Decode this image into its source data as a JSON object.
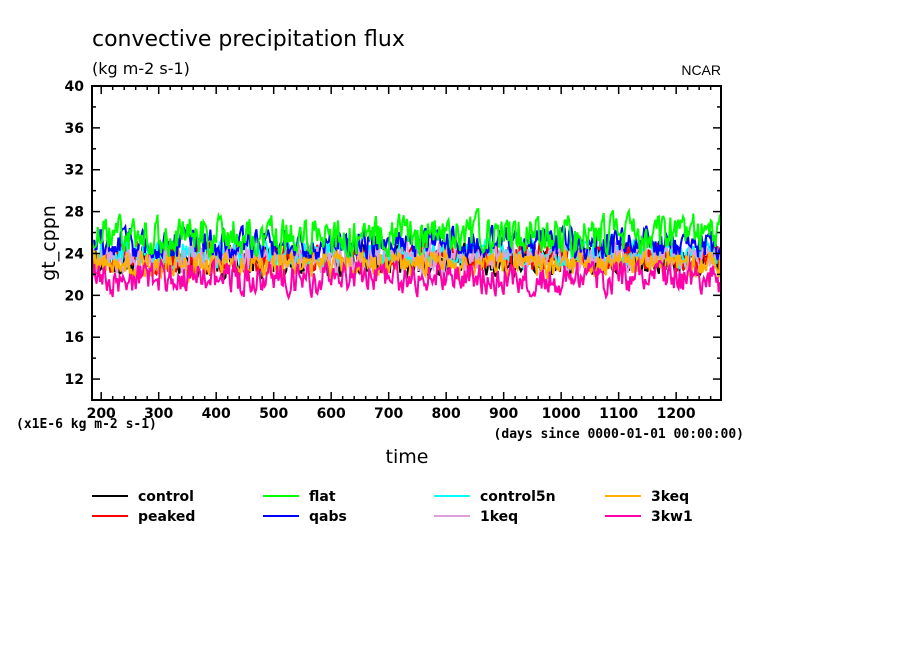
{
  "chart_data": {
    "type": "line",
    "title": "convective precipitation flux",
    "subtitle": "(kg m-2 s-1)",
    "credit": "NCAR",
    "xlabel": "time",
    "x_units": "(days since 0000-01-01 00:00:00)",
    "ylabel": "gt_cppn",
    "y_scale_note": "(x1E-6 kg m-2 s-1)",
    "xlim": [
      184,
      1278
    ],
    "ylim": [
      10,
      40
    ],
    "x_ticks": [
      200,
      300,
      400,
      500,
      600,
      700,
      800,
      900,
      1000,
      1100,
      1200
    ],
    "x_tick_labels": [
      "200",
      "300",
      "400",
      "500",
      "600",
      "700",
      "800",
      "900",
      "1000",
      "1100",
      "1200"
    ],
    "y_ticks": [
      12,
      16,
      20,
      24,
      28,
      32,
      36,
      40
    ],
    "y_tick_labels": [
      "12",
      "16",
      "20",
      "24",
      "28",
      "32",
      "36",
      "40"
    ],
    "grid": false,
    "legend_position": "bottom",
    "series": [
      {
        "name": "control",
        "color": "#000000",
        "mean": 23.2,
        "range": [
          21.0,
          25.5
        ]
      },
      {
        "name": "peaked",
        "color": "#ff0000",
        "mean": 23.6,
        "range": [
          21.5,
          26.0
        ]
      },
      {
        "name": "control5n",
        "color": "#00ffff",
        "mean": 24.0,
        "range": [
          22.0,
          26.0
        ]
      },
      {
        "name": "1keq",
        "color": "#dda0dd",
        "mean": 23.5,
        "range": [
          21.0,
          25.5
        ]
      },
      {
        "name": "3keq",
        "color": "#ffb000",
        "mean": 23.0,
        "range": [
          21.0,
          25.0
        ]
      },
      {
        "name": "qabs",
        "color": "#0000ff",
        "mean": 25.0,
        "range": [
          23.0,
          27.5
        ]
      },
      {
        "name": "flat",
        "color": "#00ff00",
        "mean": 25.8,
        "range": [
          23.5,
          29.2
        ]
      },
      {
        "name": "3kw1",
        "color": "#ff00aa",
        "mean": 21.6,
        "range": [
          19.3,
          24.0
        ]
      }
    ],
    "legend_order": [
      "control",
      "flat",
      "control5n",
      "3keq",
      "peaked",
      "qabs",
      "1keq",
      "3kw1"
    ]
  }
}
